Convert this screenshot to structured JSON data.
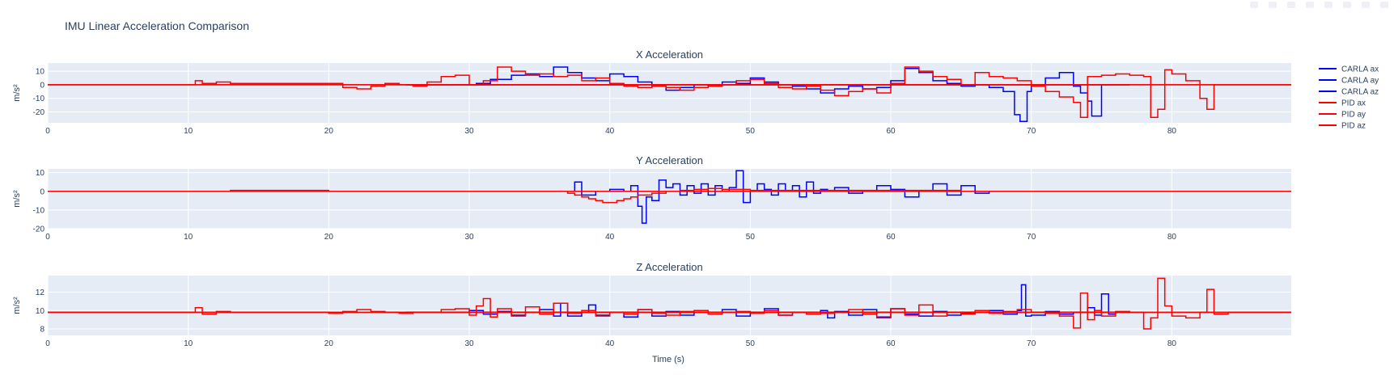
{
  "title": "IMU Linear Acceleration Comparison",
  "xlabel": "Time (s)",
  "colors": {
    "carla": "#0000ff",
    "pid": "#ff0000",
    "plot_bg": "#e5ecf6",
    "grid": "#ffffff",
    "text": "#2a3f5f"
  },
  "legend": [
    {
      "label": "CARLA ax",
      "color": "#0000ff"
    },
    {
      "label": "CARLA ay",
      "color": "#0000ff"
    },
    {
      "label": "CARLA az",
      "color": "#0000ff"
    },
    {
      "label": "PID ax",
      "color": "#ff0000"
    },
    {
      "label": "PID ay",
      "color": "#ff0000"
    },
    {
      "label": "PID az",
      "color": "#ff0000"
    }
  ],
  "chart_data": [
    {
      "type": "line",
      "line_shape": "step",
      "title": "X Acceleration",
      "xlabel": "",
      "ylabel": "m/s²",
      "xlim": [
        0,
        88.5
      ],
      "ylim": [
        -28,
        16
      ],
      "xticks": [
        0,
        10,
        20,
        30,
        40,
        50,
        60,
        70,
        80
      ],
      "yticks": [
        10,
        0,
        -10,
        -20
      ],
      "grid": true,
      "series": [
        {
          "name": "CARLA ax",
          "color": "#0000ff",
          "x": [
            25.5,
            30.5,
            31.5,
            33,
            34,
            35,
            36,
            37,
            38,
            39,
            40,
            41,
            42,
            43,
            44,
            45,
            46,
            47,
            48,
            49,
            50,
            51,
            52,
            53,
            54,
            55,
            56,
            57,
            58,
            59,
            60,
            61,
            62,
            63,
            64,
            65,
            66,
            67,
            68,
            68.8,
            69.2,
            69.7,
            70,
            71,
            72,
            73,
            73.5,
            74,
            74.3,
            75,
            77
          ],
          "y": [
            0,
            1,
            4,
            7,
            8,
            6,
            13,
            9,
            5,
            3,
            8,
            6,
            2,
            -1,
            -4,
            -2,
            0,
            -1,
            2,
            1,
            5,
            2,
            0,
            -1,
            -3,
            -6,
            -3,
            -1,
            -3,
            -2,
            3,
            12,
            9,
            3,
            1,
            -1,
            0,
            -2,
            -5,
            -22,
            -27,
            -5,
            0,
            5,
            9,
            -1,
            -6,
            -12,
            -23,
            0,
            0
          ]
        },
        {
          "name": "CARLA ay",
          "color": "#0000ff",
          "x": [
            25.5,
            77
          ],
          "y": [
            0,
            0
          ]
        },
        {
          "name": "CARLA az",
          "color": "#0000ff",
          "x": [
            25.5,
            77
          ],
          "y": [
            0,
            0
          ]
        },
        {
          "name": "PID ax",
          "color": "#ff0000",
          "x": [
            0,
            10,
            10.5,
            11,
            12,
            13,
            14,
            15,
            20,
            21,
            22,
            23,
            24,
            25,
            26,
            27,
            28,
            29,
            30,
            31,
            32,
            33,
            34,
            35,
            36,
            37,
            38,
            39,
            40,
            41,
            42,
            43,
            44,
            45,
            46,
            47,
            48,
            49,
            50,
            51,
            52,
            53,
            54,
            55,
            56,
            57,
            58,
            59,
            60,
            61,
            62,
            63,
            64,
            65,
            66,
            67,
            68,
            69,
            70,
            71,
            72,
            73,
            73.5,
            74,
            75,
            76,
            77,
            78,
            78.5,
            79,
            79.5,
            80,
            81,
            82,
            82.5,
            83,
            84,
            88.5
          ],
          "y": [
            0,
            0,
            3,
            1,
            2,
            1,
            1,
            1,
            1,
            -2,
            -3,
            -1,
            1,
            0,
            -1,
            2,
            6,
            7,
            0,
            3,
            13,
            10,
            7,
            8,
            6,
            7,
            3,
            5,
            1,
            -1,
            -2,
            -1,
            -2,
            -4,
            -2,
            -1,
            0,
            3,
            4,
            1,
            -2,
            -3,
            -1,
            -4,
            -8,
            -5,
            -3,
            -6,
            1,
            13,
            10,
            6,
            4,
            0,
            9,
            6,
            5,
            3,
            -1,
            -5,
            -9,
            -13,
            -24,
            6,
            7,
            8,
            7,
            6,
            -24,
            -18,
            11,
            8,
            3,
            -10,
            -18,
            0,
            0,
            0
          ]
        },
        {
          "name": "PID ay",
          "color": "#ff0000",
          "x": [
            0,
            88.5
          ],
          "y": [
            0,
            0
          ]
        },
        {
          "name": "PID az",
          "color": "#ff0000",
          "x": [
            0,
            88.5
          ],
          "y": [
            0,
            0
          ]
        }
      ]
    },
    {
      "type": "line",
      "line_shape": "step",
      "title": "Y Acceleration",
      "xlabel": "",
      "ylabel": "m/s²",
      "xlim": [
        0,
        88.5
      ],
      "ylim": [
        -20,
        12
      ],
      "xticks": [
        0,
        10,
        20,
        30,
        40,
        50,
        60,
        70,
        80
      ],
      "yticks": [
        10,
        0,
        -10,
        -20
      ],
      "grid": true,
      "series": [
        {
          "name": "CARLA ax",
          "color": "#0000ff",
          "x": [
            25.5,
            77
          ],
          "y": [
            0,
            0
          ]
        },
        {
          "name": "CARLA ay",
          "color": "#0000ff",
          "x": [
            25.5,
            37,
            37.5,
            38,
            39,
            40,
            41,
            41.5,
            42,
            42.3,
            42.6,
            43,
            43.5,
            44,
            44.5,
            45,
            45.5,
            46,
            46.5,
            47,
            47.5,
            48,
            48.5,
            49,
            49.5,
            50,
            50.5,
            51,
            51.5,
            52,
            52.5,
            53,
            53.5,
            54,
            54.5,
            55,
            55.5,
            56,
            57,
            58,
            59,
            60,
            61,
            62,
            63,
            64,
            65,
            66,
            67,
            77
          ],
          "y": [
            0,
            0,
            5,
            -2,
            0,
            1,
            0,
            3,
            -8,
            -17,
            -3,
            -5,
            6,
            2,
            4,
            -2,
            3,
            -1,
            4,
            -2,
            3,
            0,
            2,
            11,
            -6,
            0,
            4,
            1,
            -2,
            4,
            0,
            3,
            -3,
            5,
            -1,
            1,
            0,
            2,
            -1,
            0,
            3,
            1,
            -3,
            0,
            4,
            -2,
            3,
            -1,
            0,
            0
          ]
        },
        {
          "name": "CARLA az",
          "color": "#0000ff",
          "x": [
            25.5,
            77
          ],
          "y": [
            0,
            0
          ]
        },
        {
          "name": "PID ax",
          "color": "#ff0000",
          "x": [
            0,
            88.5
          ],
          "y": [
            0,
            0
          ]
        },
        {
          "name": "PID ay",
          "color": "#ff0000",
          "x": [
            0,
            13,
            20,
            30,
            36,
            37,
            37.5,
            38,
            38.5,
            39,
            39.5,
            40,
            40.5,
            41,
            41.5,
            42,
            43,
            44,
            45,
            46,
            47,
            48,
            50,
            55,
            60,
            65,
            70,
            80,
            88.5
          ],
          "y": [
            0,
            0.5,
            0,
            0,
            0,
            -1,
            -2,
            -3,
            -4,
            -5,
            -6,
            -6,
            -5,
            -4,
            -3,
            -2,
            -1,
            0,
            0.5,
            1,
            1.5,
            1,
            0.5,
            0.5,
            0.5,
            0,
            0,
            0,
            0
          ]
        },
        {
          "name": "PID az",
          "color": "#ff0000",
          "x": [
            0,
            88.5
          ],
          "y": [
            0,
            0
          ]
        }
      ]
    },
    {
      "type": "line",
      "line_shape": "step",
      "title": "Z Acceleration",
      "xlabel": "Time (s)",
      "ylabel": "m/s²",
      "xlim": [
        0,
        88.5
      ],
      "ylim": [
        7.3,
        13.8
      ],
      "xticks": [
        0,
        10,
        20,
        30,
        40,
        50,
        60,
        70,
        80
      ],
      "yticks": [
        12,
        10,
        8
      ],
      "grid": true,
      "series": [
        {
          "name": "CARLA ax",
          "color": "#0000ff",
          "x": [
            25.5,
            77
          ],
          "y": [
            9.8,
            9.8
          ]
        },
        {
          "name": "CARLA ay",
          "color": "#0000ff",
          "x": [
            25.5,
            77
          ],
          "y": [
            9.8,
            9.8
          ]
        },
        {
          "name": "CARLA az",
          "color": "#0000ff",
          "x": [
            25.5,
            30,
            31,
            32,
            33,
            34,
            35,
            36,
            36.5,
            37,
            38,
            38.5,
            39,
            40,
            41,
            42,
            43,
            44,
            45,
            46,
            47,
            48,
            49,
            50,
            51,
            52,
            53,
            54,
            55,
            55.5,
            56,
            57,
            58,
            59,
            60,
            61,
            62,
            63,
            64,
            65,
            66,
            67,
            68,
            69,
            69.3,
            69.6,
            70,
            71,
            72,
            73,
            74,
            74.5,
            75,
            75.5,
            76,
            77
          ],
          "y": [
            9.8,
            10.0,
            9.6,
            9.9,
            9.5,
            9.8,
            10.1,
            9.4,
            10.8,
            9.4,
            9.8,
            10.6,
            9.5,
            9.8,
            9.3,
            10.1,
            9.4,
            9.9,
            9.5,
            9.8,
            9.6,
            10.1,
            9.4,
            9.8,
            10.2,
            9.5,
            9.8,
            9.6,
            10.0,
            9.2,
            9.9,
            9.5,
            10.1,
            9.3,
            10.2,
            9.6,
            9.4,
            9.9,
            9.5,
            9.7,
            9.8,
            10.0,
            9.6,
            10.0,
            12.8,
            9.4,
            9.5,
            9.9,
            9.6,
            9.8,
            10.3,
            9.5,
            11.8,
            9.6,
            9.8,
            9.8
          ]
        },
        {
          "name": "PID ax",
          "color": "#ff0000",
          "x": [
            0,
            88.5
          ],
          "y": [
            9.8,
            9.8
          ]
        },
        {
          "name": "PID ay",
          "color": "#ff0000",
          "x": [
            0,
            88.5
          ],
          "y": [
            9.8,
            9.8
          ]
        },
        {
          "name": "PID az",
          "color": "#ff0000",
          "x": [
            0,
            10,
            10.5,
            11,
            12,
            13,
            15,
            20,
            21,
            22,
            23,
            24,
            25,
            26,
            28,
            29,
            30,
            30.5,
            31,
            31.5,
            32,
            33,
            34,
            35,
            36,
            37,
            38,
            39,
            40,
            41,
            42,
            43,
            44,
            45,
            46,
            47,
            48,
            49,
            50,
            51,
            52,
            53,
            54,
            55,
            56,
            57,
            58,
            59,
            60,
            61,
            62,
            63,
            64,
            65,
            66,
            67,
            68,
            69,
            70,
            71,
            72,
            73,
            73.5,
            74,
            74.5,
            75,
            76,
            77,
            78,
            78.5,
            79,
            79.5,
            80,
            81,
            82,
            82.5,
            83,
            84,
            88.5
          ],
          "y": [
            9.8,
            9.8,
            10.3,
            9.6,
            9.9,
            9.8,
            9.8,
            9.7,
            9.9,
            10.1,
            9.9,
            9.8,
            9.7,
            9.8,
            10.1,
            10.2,
            9.5,
            10.5,
            11.3,
            9.3,
            10.2,
            9.4,
            10.4,
            9.6,
            10.8,
            9.7,
            10.0,
            9.4,
            9.8,
            9.6,
            10.1,
            9.7,
            9.5,
            9.9,
            10.0,
            9.6,
            9.8,
            9.9,
            9.7,
            10.0,
            9.5,
            9.8,
            9.6,
            9.7,
            9.8,
            10.1,
            9.6,
            9.2,
            10.2,
            9.5,
            10.6,
            9.4,
            9.8,
            9.6,
            10.0,
            9.7,
            9.9,
            10.1,
            9.8,
            9.7,
            9.4,
            8.1,
            11.9,
            9.0,
            10.0,
            9.4,
            9.9,
            9.8,
            8.0,
            9.2,
            13.5,
            10.5,
            9.4,
            9.2,
            9.8,
            12.3,
            9.6,
            9.8,
            9.8
          ]
        }
      ]
    }
  ]
}
